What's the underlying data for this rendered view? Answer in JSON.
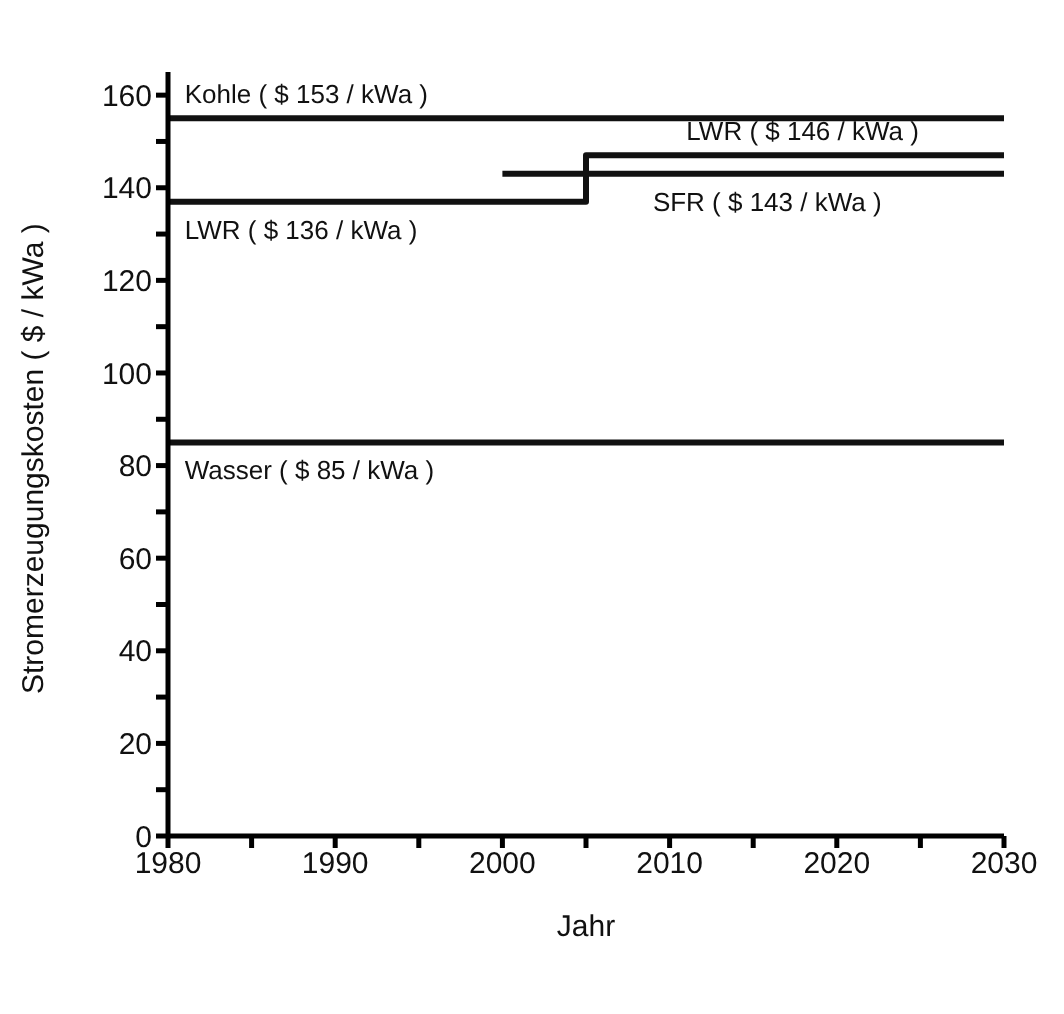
{
  "chart_data": {
    "type": "line",
    "xlabel": "Jahr",
    "ylabel": "Stromerzeugungskosten ( $ / kWa )",
    "xlim": [
      1980,
      2030
    ],
    "ylim": [
      0,
      165
    ],
    "xticks": [
      1980,
      {
        "value": 1985,
        "label": null
      },
      1990,
      {
        "value": 1995,
        "label": null
      },
      2000,
      {
        "value": 2005,
        "label": null
      },
      2010,
      {
        "value": 2015,
        "label": null
      },
      2020,
      {
        "value": 2025,
        "label": null
      },
      2030
    ],
    "yticks": [
      0,
      {
        "value": 10,
        "label": null
      },
      20,
      {
        "value": 30,
        "label": null
      },
      40,
      {
        "value": 50,
        "label": null
      },
      60,
      {
        "value": 70,
        "label": null
      },
      80,
      {
        "value": 90,
        "label": null
      },
      100,
      {
        "value": 110,
        "label": null
      },
      120,
      {
        "value": 130,
        "label": null
      },
      140,
      {
        "value": 150,
        "label": null
      },
      160
    ],
    "grid": false,
    "marker": "none",
    "line_style": "solid",
    "series": [
      {
        "color": "#111111",
        "x": [
          1980,
          2030
        ],
        "values": [
          155,
          155
        ]
      },
      {
        "type": "step",
        "color": "#111111",
        "x": [
          1980,
          2005,
          2030
        ],
        "values": [
          137,
          147,
          147
        ]
      },
      {
        "color": "#111111",
        "x": [
          2000,
          2030
        ],
        "values": [
          143,
          143
        ]
      },
      {
        "color": "#111111",
        "x": [
          1980,
          2030
        ],
        "values": [
          85,
          85
        ]
      }
    ],
    "annotations": [
      {
        "text": "Kohle ( $ 153 / kWa )",
        "x": 1981,
        "y": 155
      },
      {
        "text": "LWR ( $ 146 / kWa )",
        "x": 2011,
        "y": 147
      },
      {
        "text": "SFR ( $ 143 / kWa )",
        "x": 2009,
        "y": 143
      },
      {
        "text": "LWR ( $ 136 / kWa )",
        "x": 1981,
        "y": 137
      },
      {
        "text": "Wasser ( $ 85 / kWa )",
        "x": 1981,
        "y": 85
      }
    ]
  }
}
